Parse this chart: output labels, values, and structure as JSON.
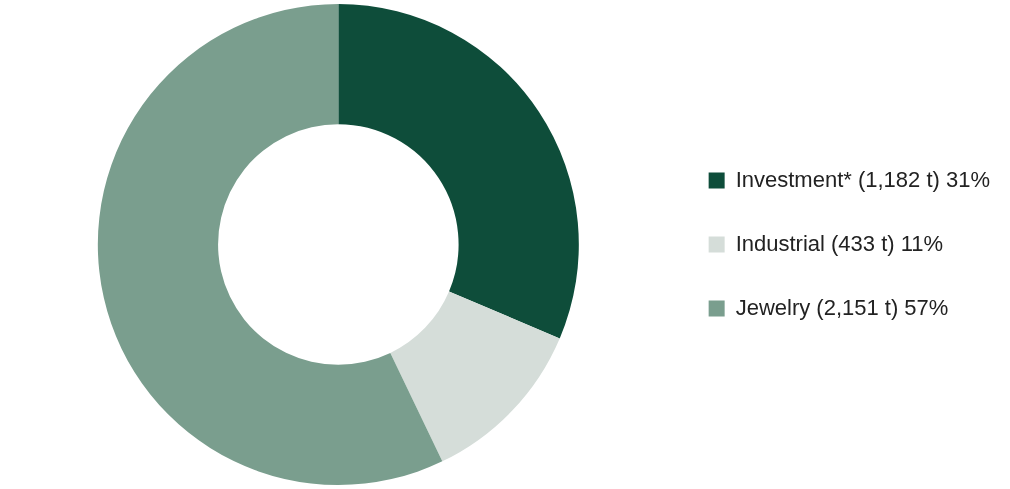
{
  "chart_data": {
    "type": "donut",
    "categories": [
      "Investment* (1,182 t) 31%",
      "Industrial (433 t) 11%",
      "Jewelry (2,151 t) 57%"
    ],
    "values": [
      1182,
      433,
      2151
    ],
    "colors": [
      "#0e4d3a",
      "#d5ddd9",
      "#7a9e8e"
    ],
    "legend": "right"
  }
}
